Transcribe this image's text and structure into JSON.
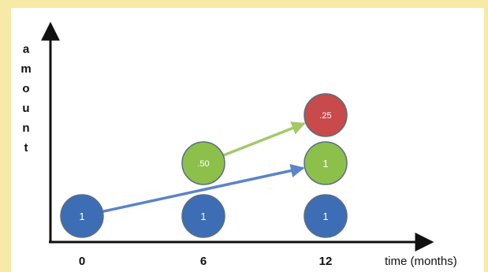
{
  "diagram": {
    "y_axis_label_letters": [
      "a",
      "m",
      "o",
      "u",
      "n",
      "t"
    ],
    "x_axis_title": "time (months)",
    "x_ticks": [
      "0",
      "6",
      "12"
    ],
    "colors": {
      "blue": "#3d6db5",
      "green": "#8dc04b",
      "red": "#c84a4a",
      "blue_arrow": "#5b84c7",
      "green_arrow": "#a3c96a"
    },
    "nodes": [
      {
        "month": "0",
        "level": 1,
        "label": "1",
        "color": "blue"
      },
      {
        "month": "6",
        "level": 1,
        "label": "1",
        "color": "blue"
      },
      {
        "month": "6",
        "level": 2,
        "label": ".50",
        "color": "green"
      },
      {
        "month": "12",
        "level": 1,
        "label": "1",
        "color": "blue"
      },
      {
        "month": "12",
        "level": 2,
        "label": "1",
        "color": "green"
      },
      {
        "month": "12",
        "level": 3,
        "label": ".25",
        "color": "red"
      }
    ],
    "arrows": [
      {
        "from_month": "0",
        "from_level": 1,
        "to_month": "12",
        "to_level": 2,
        "color": "blue_arrow"
      },
      {
        "from_month": "6",
        "from_level": 2,
        "to_month": "12",
        "to_level": 3,
        "color": "green_arrow"
      }
    ]
  }
}
